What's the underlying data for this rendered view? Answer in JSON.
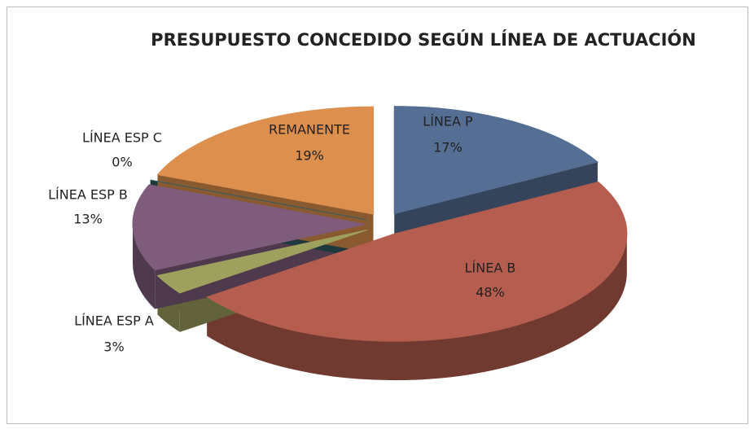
{
  "chart_data": {
    "type": "pie",
    "title": "PRESUPUESTO CONCEDIDO SEGÚN LÍNEA DE ACTUACIÓN",
    "categories": [
      "LÍNEA P",
      "LÍNEA B",
      "LÍNEA ESP A",
      "LÍNEA ESP B",
      "LÍNEA ESP C",
      "REMANENTE"
    ],
    "values": [
      17,
      48,
      3,
      13,
      0,
      19
    ],
    "value_labels": [
      "17%",
      "48%",
      "3%",
      "13%",
      "0%",
      "19%"
    ],
    "colors": [
      "#556e93",
      "#b55d4f",
      "#9ea05e",
      "#7f5c7c",
      "#2f5c63",
      "#dd8f4e"
    ]
  }
}
